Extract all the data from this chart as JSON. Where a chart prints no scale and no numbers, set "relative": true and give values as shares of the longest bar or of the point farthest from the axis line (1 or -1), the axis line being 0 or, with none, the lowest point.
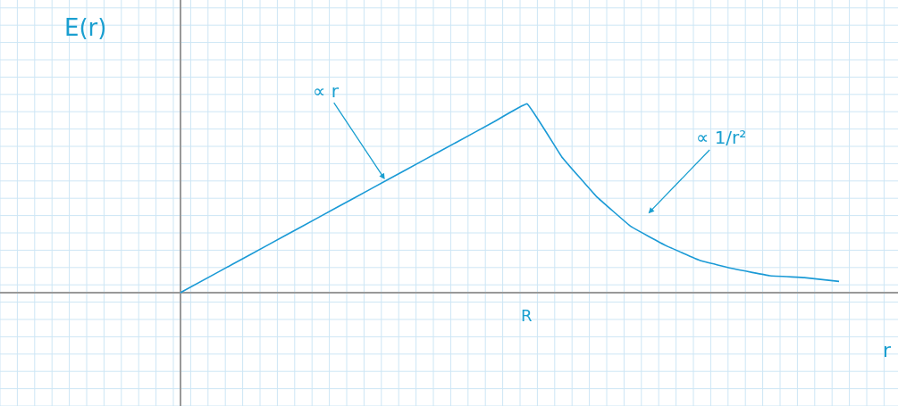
{
  "chart_data": {
    "type": "line",
    "relative": true,
    "xlabel": "r",
    "ylabel": "E(r)",
    "categories": [
      null,
      null,
      null,
      null,
      null,
      null,
      null,
      null,
      null,
      null,
      null,
      null,
      null,
      null,
      null,
      null,
      null,
      null,
      null,
      null
    ],
    "series": [
      {
        "color": "#1a9ad6",
        "values": [
          0,
          0.1,
          0.2,
          0.3,
          0.4,
          0.5,
          0.6,
          0.7,
          0.8,
          0.9,
          1,
          0.72,
          0.51,
          0.35,
          0.25,
          0.17,
          0.125,
          0.09,
          0.08,
          0.06
        ]
      }
    ],
    "annotations": [
      "∝ r",
      "∝ 1/r²",
      "R"
    ],
    "grid": true,
    "marker": "none",
    "line_style": "solid"
  }
}
